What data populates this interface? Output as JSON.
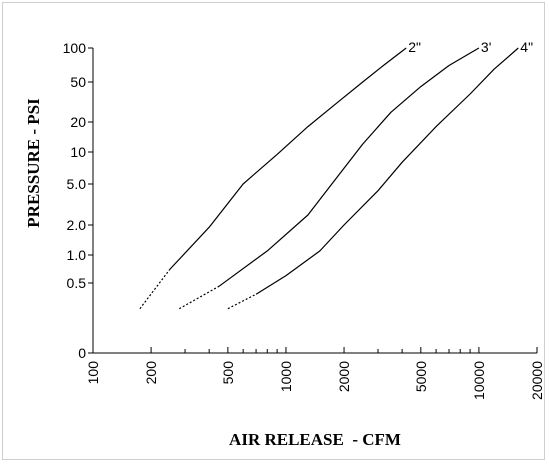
{
  "chart_data": {
    "type": "line",
    "title": "",
    "xlabel": "AIR RELEASE  - CFM",
    "ylabel": "PRESSURE - PSI",
    "x_scale": "log",
    "y_scale": "nonlinear",
    "xlim": [
      100,
      20000
    ],
    "x_ticks": [
      "100",
      "200",
      "500",
      "1000",
      "2000",
      "5000",
      "10000",
      "20000"
    ],
    "y_ticks": [
      "0",
      "0.5",
      "1.0",
      "2.0",
      "5.0",
      "10",
      "20",
      "50",
      "100"
    ],
    "grid": false,
    "legend": "none",
    "series": [
      {
        "name": "2\"",
        "x": [
          175,
          250,
          400,
          600,
          900,
          1300,
          1800,
          2500,
          3200,
          4200
        ],
        "y": [
          0.22,
          0.7,
          1.9,
          5.0,
          9.5,
          18,
          30,
          50,
          70,
          100
        ],
        "dashed_until_x": 250
      },
      {
        "name": "3'",
        "x": [
          280,
          450,
          800,
          1300,
          1800,
          2500,
          3500,
          5000,
          7000,
          10000
        ],
        "y": [
          0.22,
          0.45,
          1.1,
          2.5,
          5.5,
          12,
          25,
          45,
          70,
          100
        ],
        "dashed_until_x": 450
      },
      {
        "name": "4\"",
        "x": [
          500,
          700,
          1000,
          1500,
          2000,
          3000,
          4000,
          6000,
          9000,
          12000,
          16000
        ],
        "y": [
          0.22,
          0.35,
          0.6,
          1.1,
          2.0,
          4.3,
          8.0,
          18,
          38,
          65,
          100
        ],
        "dashed_until_x": 800
      }
    ]
  }
}
